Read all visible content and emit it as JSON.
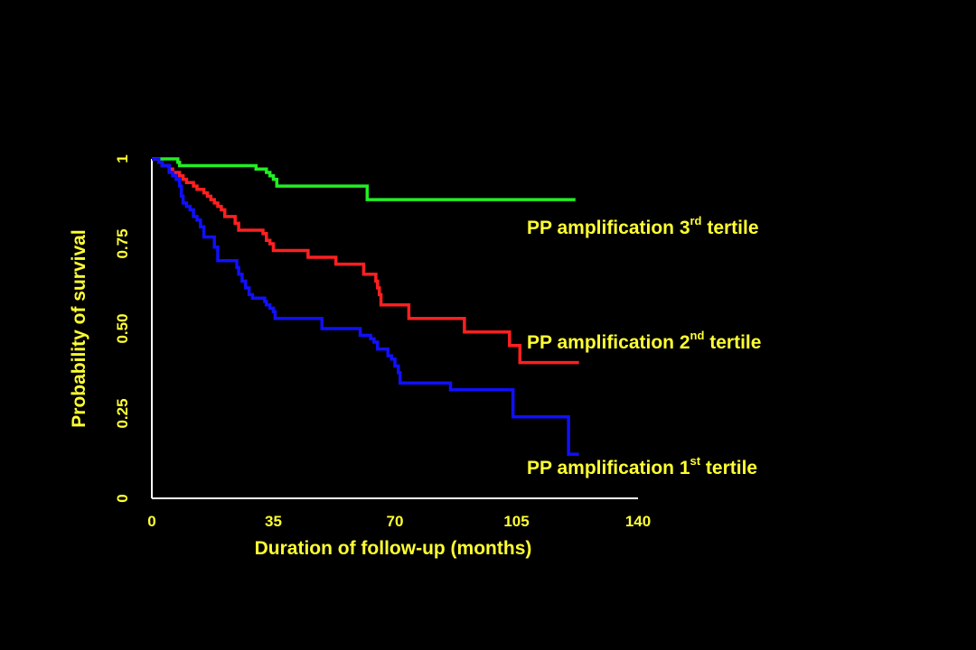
{
  "colors": {
    "background": "#000000",
    "text": "#FFFF33",
    "axis": "#FFFFFF"
  },
  "chart_data": {
    "type": "line",
    "subtype": "kaplan-meier step survival curve",
    "xlabel": "Duration of follow-up (months)",
    "ylabel": "Probability of survival",
    "xlim": [
      0,
      140
    ],
    "ylim": [
      0,
      1
    ],
    "x_ticks": [
      {
        "value": 0,
        "label": "0"
      },
      {
        "value": 35,
        "label": "35"
      },
      {
        "value": 70,
        "label": "70"
      },
      {
        "value": 105,
        "label": "105"
      },
      {
        "value": 140,
        "label": "140"
      }
    ],
    "y_ticks": [
      {
        "value": 0,
        "label": "0"
      },
      {
        "value": 0.25,
        "label": "0.25"
      },
      {
        "value": 0.5,
        "label": "0.50"
      },
      {
        "value": 0.75,
        "label": "0.75"
      },
      {
        "value": 1,
        "label": "1"
      }
    ],
    "grid": false,
    "legend": "inline labels at right end of each curve",
    "series": [
      {
        "key": "tertile3",
        "label_main": "PP amplification 3",
        "label_sup": "rd",
        "label_tail": " tertile",
        "color": "#22EE22",
        "points": [
          [
            0,
            1.0
          ],
          [
            7,
            1.0
          ],
          [
            7.5,
            0.99
          ],
          [
            8,
            0.98
          ],
          [
            29,
            0.98
          ],
          [
            30,
            0.97
          ],
          [
            33,
            0.96
          ],
          [
            34,
            0.95
          ],
          [
            35,
            0.94
          ],
          [
            36,
            0.92
          ],
          [
            61,
            0.92
          ],
          [
            62,
            0.88
          ],
          [
            122,
            0.88
          ]
        ]
      },
      {
        "key": "tertile2",
        "label_main": "PP amplification 2",
        "label_sup": "nd",
        "label_tail": " tertile",
        "color": "#FF2020",
        "points": [
          [
            0,
            1.0
          ],
          [
            2,
            0.99
          ],
          [
            3,
            0.98
          ],
          [
            5,
            0.97
          ],
          [
            6,
            0.96
          ],
          [
            8,
            0.95
          ],
          [
            9,
            0.94
          ],
          [
            10,
            0.93
          ],
          [
            12,
            0.92
          ],
          [
            13,
            0.91
          ],
          [
            15,
            0.9
          ],
          [
            16,
            0.89
          ],
          [
            17,
            0.88
          ],
          [
            18,
            0.87
          ],
          [
            19,
            0.86
          ],
          [
            20,
            0.85
          ],
          [
            21,
            0.83
          ],
          [
            24,
            0.81
          ],
          [
            25,
            0.79
          ],
          [
            31,
            0.79
          ],
          [
            32,
            0.78
          ],
          [
            33,
            0.76
          ],
          [
            34,
            0.75
          ],
          [
            35,
            0.73
          ],
          [
            44,
            0.73
          ],
          [
            45,
            0.71
          ],
          [
            52,
            0.71
          ],
          [
            53,
            0.69
          ],
          [
            60,
            0.69
          ],
          [
            61,
            0.66
          ],
          [
            64,
            0.66
          ],
          [
            64.5,
            0.64
          ],
          [
            65,
            0.62
          ],
          [
            65.5,
            0.6
          ],
          [
            66,
            0.57
          ],
          [
            73,
            0.57
          ],
          [
            74,
            0.53
          ],
          [
            89,
            0.53
          ],
          [
            90,
            0.49
          ],
          [
            102,
            0.49
          ],
          [
            103,
            0.45
          ],
          [
            105,
            0.45
          ],
          [
            106,
            0.4
          ],
          [
            123,
            0.4
          ]
        ]
      },
      {
        "key": "tertile1",
        "label_main": "PP amplification 1",
        "label_sup": "st",
        "label_tail": " tertile",
        "color": "#1010FF",
        "points": [
          [
            0,
            1.0
          ],
          [
            2,
            0.99
          ],
          [
            3,
            0.98
          ],
          [
            5,
            0.96
          ],
          [
            6,
            0.95
          ],
          [
            7,
            0.94
          ],
          [
            8,
            0.92
          ],
          [
            8.5,
            0.89
          ],
          [
            9,
            0.87
          ],
          [
            10,
            0.86
          ],
          [
            11,
            0.85
          ],
          [
            12,
            0.83
          ],
          [
            13,
            0.82
          ],
          [
            14,
            0.8
          ],
          [
            15,
            0.77
          ],
          [
            17,
            0.77
          ],
          [
            18,
            0.74
          ],
          [
            19,
            0.7
          ],
          [
            24,
            0.7
          ],
          [
            24.5,
            0.68
          ],
          [
            25,
            0.66
          ],
          [
            26,
            0.64
          ],
          [
            27,
            0.62
          ],
          [
            28,
            0.6
          ],
          [
            29,
            0.59
          ],
          [
            32,
            0.59
          ],
          [
            32.5,
            0.58
          ],
          [
            33,
            0.57
          ],
          [
            34,
            0.56
          ],
          [
            35,
            0.55
          ],
          [
            35.5,
            0.53
          ],
          [
            48,
            0.53
          ],
          [
            49,
            0.5
          ],
          [
            59,
            0.5
          ],
          [
            60,
            0.48
          ],
          [
            62,
            0.48
          ],
          [
            63,
            0.47
          ],
          [
            64,
            0.46
          ],
          [
            65,
            0.44
          ],
          [
            67,
            0.44
          ],
          [
            68,
            0.42
          ],
          [
            69,
            0.41
          ],
          [
            70,
            0.39
          ],
          [
            71,
            0.37
          ],
          [
            71.5,
            0.34
          ],
          [
            85,
            0.34
          ],
          [
            86,
            0.32
          ],
          [
            103,
            0.32
          ],
          [
            104,
            0.24
          ],
          [
            119,
            0.24
          ],
          [
            120,
            0.13
          ],
          [
            123,
            0.13
          ]
        ]
      }
    ]
  }
}
